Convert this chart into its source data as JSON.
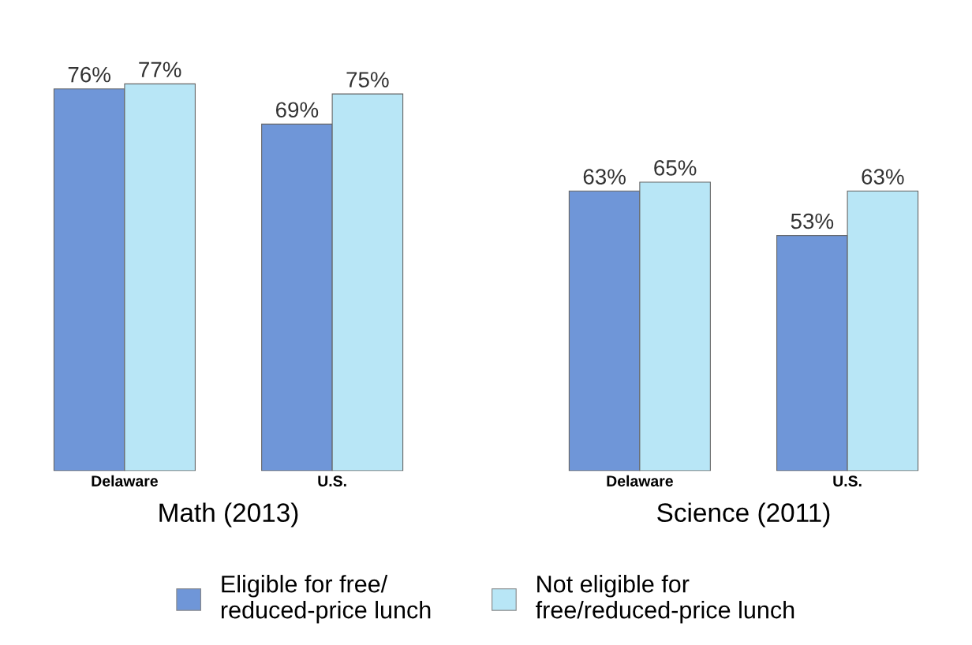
{
  "chart_data": [
    {
      "type": "bar",
      "xlabel": "Math (2013)",
      "categories": [
        "Delaware",
        "U.S."
      ],
      "legend": "bottom",
      "series": [
        {
          "name": "Eligible for free/\nreduced-price lunch",
          "color": "#6f96d8",
          "values": [
            76,
            69
          ],
          "value_labels": [
            "76%",
            "69%"
          ]
        },
        {
          "name": "Not eligible for\nfree/reduced-price lunch",
          "color": "#b8e6f6",
          "values": [
            77,
            75
          ],
          "value_labels": [
            "77%",
            "75%"
          ]
        }
      ]
    },
    {
      "type": "bar",
      "xlabel": "Science (2011)",
      "categories": [
        "Delaware",
        "U.S."
      ],
      "series": [
        {
          "name": "Eligible for free/\nreduced-price lunch",
          "color": "#6f96d8",
          "values": [
            63,
            53
          ],
          "value_labels": [
            "63%",
            "53%"
          ]
        },
        {
          "name": "Not eligible for\nfree/reduced-price lunch",
          "color": "#b8e6f6",
          "values": [
            65,
            63
          ],
          "value_labels": [
            "65%",
            "63%"
          ]
        }
      ]
    }
  ]
}
